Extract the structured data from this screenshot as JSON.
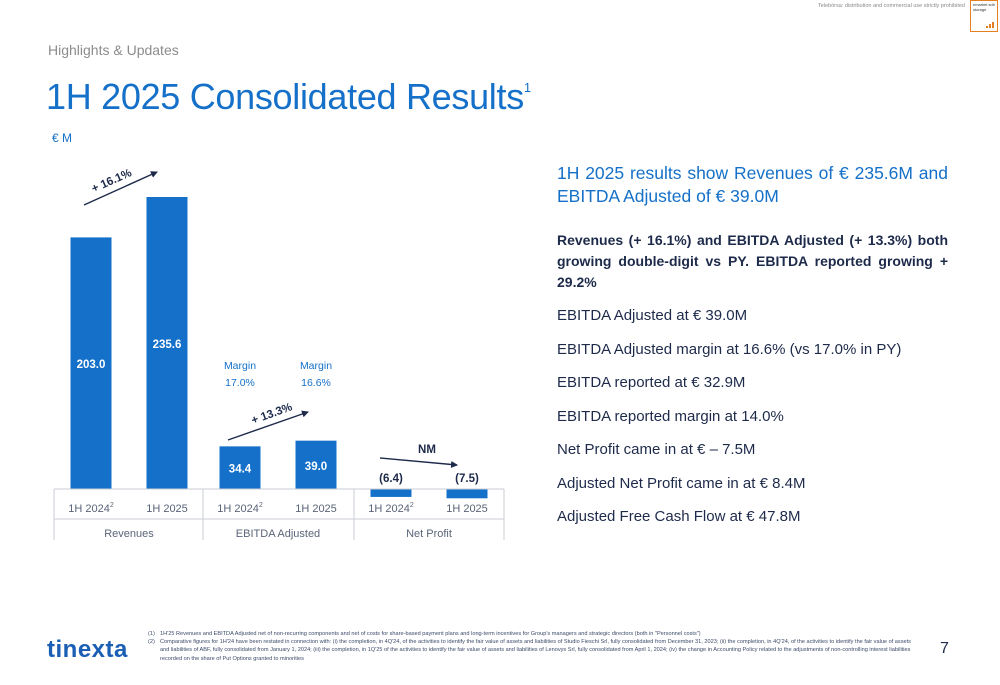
{
  "header": {
    "disclaimer": "Telebórsa: distribution and commercial use strictly prohibited",
    "emarket_logo": "emarket sdir storage",
    "section": "Highlights & Updates",
    "title": "1H 2025 Consolidated Results",
    "title_sup": "1"
  },
  "chart_data": {
    "type": "bar",
    "unit_label": "€ M",
    "groups": [
      {
        "name": "Revenues",
        "categories": [
          {
            "label": "1H 2024",
            "sup": "2"
          },
          {
            "label": "1H 2025",
            "sup": ""
          }
        ],
        "values": [
          203.0,
          235.6
        ],
        "value_labels": [
          "203.0",
          "235.6"
        ],
        "growth_label": "+ 16.1%",
        "margins": null
      },
      {
        "name": "EBITDA Adjusted",
        "categories": [
          {
            "label": "1H 2024",
            "sup": "2"
          },
          {
            "label": "1H 2025",
            "sup": ""
          }
        ],
        "values": [
          34.4,
          39.0
        ],
        "value_labels": [
          "34.4",
          "39.0"
        ],
        "growth_label": "+ 13.3%",
        "margins": [
          {
            "label": "Margin",
            "value": "17.0%"
          },
          {
            "label": "Margin",
            "value": "16.6%"
          }
        ]
      },
      {
        "name": "Net Profit",
        "categories": [
          {
            "label": "1H 2024",
            "sup": "2"
          },
          {
            "label": "1H 2025",
            "sup": ""
          }
        ],
        "values": [
          -6.4,
          -7.5
        ],
        "value_labels": [
          "(6.4)",
          "(7.5)"
        ],
        "growth_label": "NM",
        "margins": null
      }
    ],
    "bar_color": "#1470c8",
    "label_color": "#1d2a4a",
    "grid": false
  },
  "summary": {
    "headline": "1H 2025 results show Revenues of € 235.6M and EBITDA Adjusted of € 39.0M",
    "bold_paragraph": "Revenues (+ 16.1%) and EBITDA Adjusted (+ 13.3%) both growing double-digit vs PY. EBITDA reported growing + 29.2%",
    "bullets": [
      "EBITDA Adjusted at € 39.0M",
      "EBITDA Adjusted margin at 16.6% (vs 17.0% in PY)",
      "EBITDA reported at € 32.9M",
      "EBITDA reported margin at 14.0%",
      "Net Profit came in at € – 7.5M",
      "Adjusted Net Profit came in at € 8.4M",
      "Adjusted Free Cash Flow at € 47.8M"
    ]
  },
  "footer": {
    "logo": "tinexta",
    "page_number": "7",
    "footnotes": [
      {
        "num": "(1)",
        "text": "1H'25 Revenues and EBITDA Adjusted net of non-recurring components and net of costs for share-based payment plans and long-term incentives for Group's managers and strategic directors (both in \"Personnel costs\")"
      },
      {
        "num": "(2)",
        "text": "Comparative figures for 1H'24 have been restated in connection with: (i) the completion, in 4Q'24, of the activities to identify the fair value of assets and liabilities of Studio Fieschi Srl, fully consolidated from December 31, 2023; (ii) the completion, in 4Q'24, of the activities to identify the fair value of assets and liabilities of ABF, fully consolidated from January 1, 2024; (iii) the completion, in 1Q'25 of the activities to identify the fair value of assets and liabilities of Lenovys Srl, fully consolidated from April 1, 2024; (iv) the change in Accounting Policy related to the adjustments of non-controlling interest liabilities recorded on the share of Put Options granted to minorities"
      }
    ]
  }
}
